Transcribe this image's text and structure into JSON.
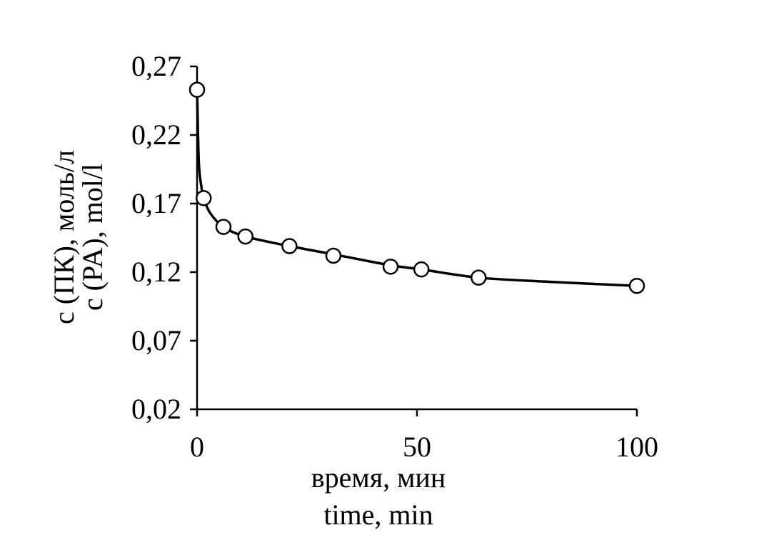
{
  "chart_data": {
    "type": "line",
    "xlabel": [
      "время, мин",
      "time, min"
    ],
    "ylabel": [
      "c (ПК), моль/л",
      "c (PA), mol/l"
    ],
    "xlim": [
      0,
      100
    ],
    "ylim": [
      0.02,
      0.27
    ],
    "x_ticks": [
      {
        "value": 0,
        "label": "0"
      },
      {
        "value": 50,
        "label": "50"
      },
      {
        "value": 100,
        "label": "100"
      }
    ],
    "y_ticks": [
      {
        "value": 0.02,
        "label": "0,02"
      },
      {
        "value": 0.07,
        "label": "0,07"
      },
      {
        "value": 0.12,
        "label": "0,12"
      },
      {
        "value": 0.17,
        "label": "0,17"
      },
      {
        "value": 0.22,
        "label": "0,22"
      },
      {
        "value": 0.27,
        "label": "0,27"
      }
    ],
    "grid": false,
    "legend": "none",
    "series": [
      {
        "marker": "open-circle",
        "points": [
          {
            "x": 0,
            "y": 0.253
          },
          {
            "x": 1.5,
            "y": 0.174
          },
          {
            "x": 6,
            "y": 0.153
          },
          {
            "x": 11,
            "y": 0.146
          },
          {
            "x": 21,
            "y": 0.139
          },
          {
            "x": 31,
            "y": 0.132
          },
          {
            "x": 44,
            "y": 0.124
          },
          {
            "x": 51,
            "y": 0.122
          },
          {
            "x": 64,
            "y": 0.116
          },
          {
            "x": 100,
            "y": 0.11
          }
        ],
        "curve": [
          [
            0,
            0.253
          ],
          [
            0.4,
            0.2
          ],
          [
            1,
            0.182
          ],
          [
            1.5,
            0.174
          ],
          [
            3,
            0.163
          ],
          [
            6,
            0.153
          ],
          [
            11,
            0.146
          ],
          [
            21,
            0.139
          ],
          [
            31,
            0.133
          ],
          [
            44,
            0.125
          ],
          [
            51,
            0.122
          ],
          [
            64,
            0.116
          ],
          [
            80,
            0.113
          ],
          [
            100,
            0.11
          ]
        ]
      }
    ]
  }
}
